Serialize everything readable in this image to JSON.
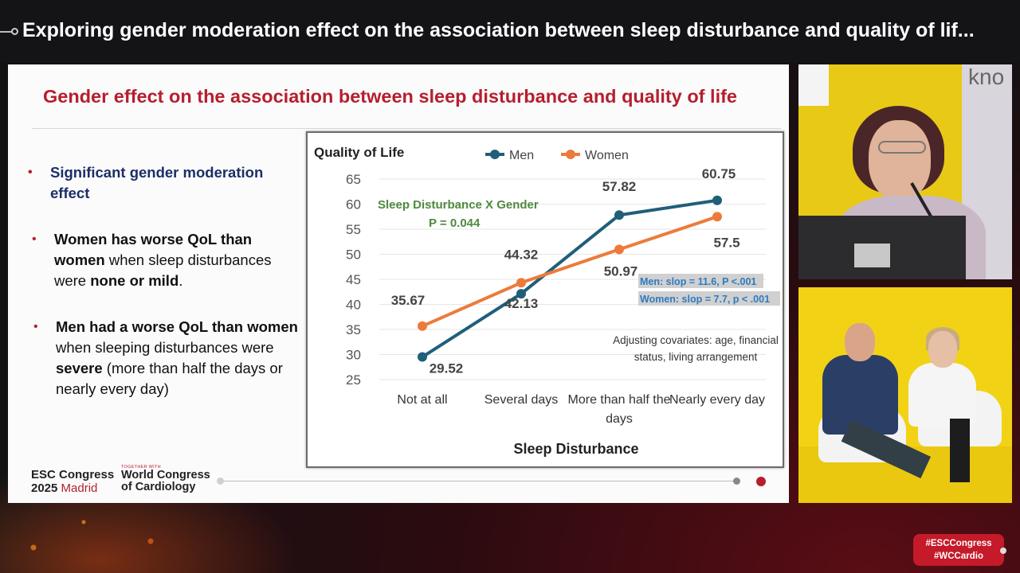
{
  "header": {
    "title": "Exploring gender moderation effect on the association between sleep disturbance and quality of lif..."
  },
  "slide": {
    "title": "Gender effect on the association between sleep disturbance and quality of life",
    "bullets": [
      {
        "segments": [
          {
            "text": "Significant gender moderation effect",
            "bold": true
          }
        ]
      },
      {
        "segments": [
          {
            "text": "Women has worse QoL than women",
            "bold": true
          },
          {
            "text": " when sleep disturbances were ",
            "bold": false
          },
          {
            "text": "none or mild",
            "bold": true
          },
          {
            "text": ".",
            "bold": false
          }
        ]
      },
      {
        "segments": [
          {
            "text": "Men had a worse QoL than women",
            "bold": true
          },
          {
            "text": " when sleeping disturbances were ",
            "bold": false
          },
          {
            "text": "severe",
            "bold": true
          },
          {
            "text": " (more than half the days or nearly every day)",
            "bold": false
          }
        ]
      }
    ],
    "bullet_mark": "•"
  },
  "chart_data": {
    "type": "line",
    "ylabel": "Quality of Life",
    "xlabel": "Sleep Disturbance",
    "categories": [
      "Not at all",
      "Several days",
      "More than half the days",
      "Nearly every day"
    ],
    "ylim": [
      25,
      65
    ],
    "yticks": [
      65,
      60,
      55,
      50,
      45,
      40,
      35,
      30,
      25
    ],
    "series": [
      {
        "name": "Men",
        "values": [
          29.52,
          42.13,
          57.82,
          60.75
        ],
        "labels": [
          "29.52",
          "42.13",
          "57.82",
          "60.75"
        ],
        "color": "#1f5f7a"
      },
      {
        "name": "Women",
        "values": [
          35.67,
          44.32,
          50.97,
          57.5
        ],
        "labels": [
          "35.67",
          "44.32",
          "50.97",
          "57.5"
        ],
        "color": "#ec7b3a"
      }
    ],
    "annotations": {
      "interaction": "Sleep Disturbance X Gender",
      "p_value": "P = 0.044",
      "men_slope": "Men: slop = 11.6, P <.001",
      "women_slope": "Women: slop = 7.7,  p < .001",
      "covariates_line1": "Adjusting covariates: age, financial",
      "covariates_line2": "status, living arrangement"
    },
    "legend": "top",
    "grid": true
  },
  "footer": {
    "esc_line1": "ESC Congress",
    "esc_year": "2025",
    "esc_city": "Madrid",
    "together": "TOGETHER WITH",
    "wc_line1": "World Congress",
    "wc_line2": "of Cardiology"
  },
  "camera_top": {
    "wall_text": "kno"
  },
  "hashtags": {
    "line1": "#ESCCongress",
    "line2": "#WCCardio"
  }
}
